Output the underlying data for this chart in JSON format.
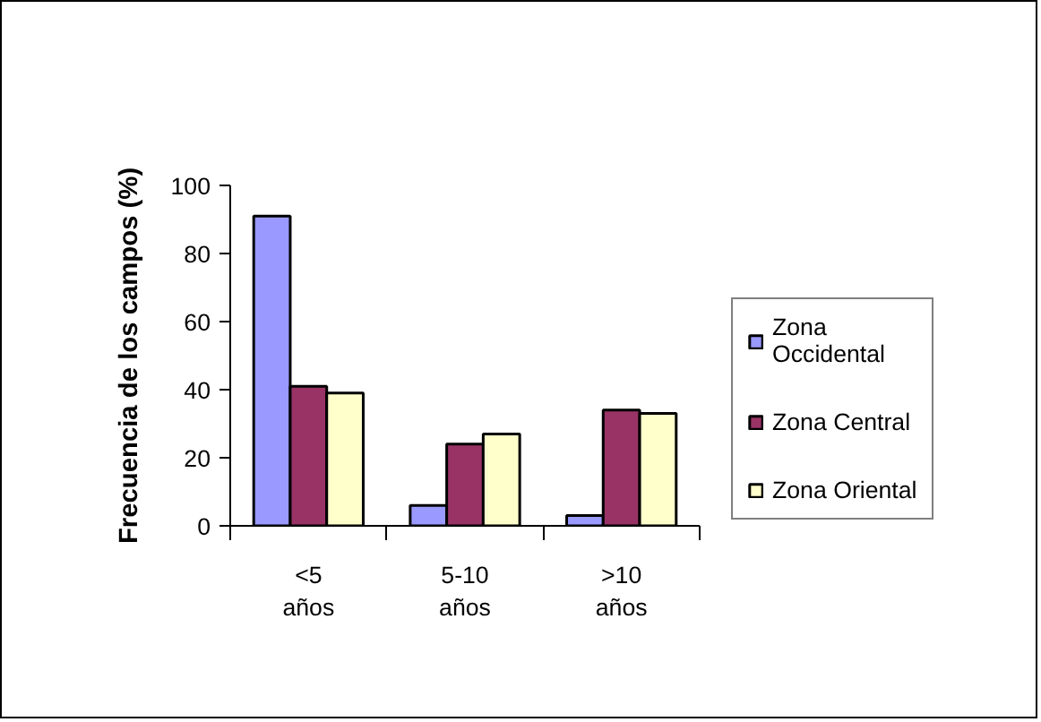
{
  "chart_data": {
    "type": "bar",
    "ylabel": "Frecuencia de los campos (%)",
    "categories": [
      "<5 años",
      "5-10 años",
      ">10 años"
    ],
    "series": [
      {
        "name": "Zona Occidental",
        "color": "#9999ff",
        "values": [
          91,
          6,
          3
        ]
      },
      {
        "name": "Zona Central",
        "color": "#993366",
        "values": [
          41,
          24,
          34
        ]
      },
      {
        "name": "Zona Oriental",
        "color": "#ffffcc",
        "values": [
          39,
          27,
          33
        ]
      }
    ],
    "ylim": [
      0,
      100
    ],
    "yticks": [
      0,
      20,
      40,
      60,
      80,
      100
    ],
    "grid": false,
    "legend": "right"
  }
}
